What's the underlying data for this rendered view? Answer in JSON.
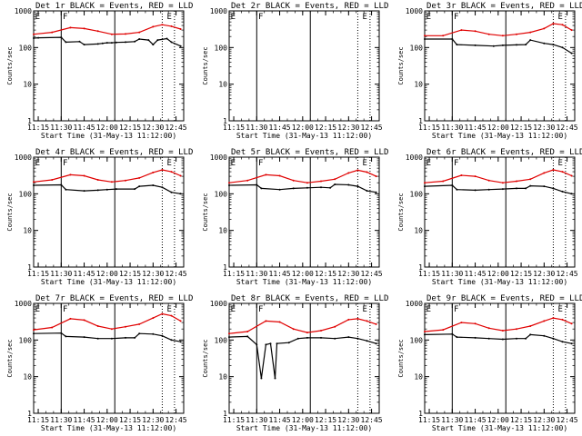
{
  "chart_data": {
    "type": "line",
    "layout": "3x3 grid of panels",
    "y_scale": "log",
    "ylim": [
      1,
      1000
    ],
    "y_ticks": [
      "1",
      "10",
      "100",
      "1000"
    ],
    "xlim": [
      "11:12",
      "12:50"
    ],
    "x_ticks": [
      "11:15",
      "11:30",
      "11:45",
      "12:00",
      "12:15",
      "12:30",
      "12:45"
    ],
    "xlabel": "Start Time (31-May-13 11:12:00)",
    "ylabel": "Counts/sec",
    "grid": false,
    "series_colors": {
      "events": "#000000",
      "lld": "#e00000"
    },
    "panels": [
      {
        "title": "Det 1r BLACK = Events, RED = LLD",
        "markers": [
          {
            "label": "E",
            "x": "11:13"
          },
          {
            "label": "F",
            "x": "11:31"
          },
          {
            "label": "E",
            "x": "12:39"
          }
        ],
        "solid_lines": [
          "11:30",
          "12:05"
        ],
        "dotted_lines": [
          "12:36",
          "12:44"
        ],
        "events": [
          [
            11.2,
            180
          ],
          [
            11.25,
            185
          ],
          [
            11.5,
            190
          ],
          [
            11.55,
            140
          ],
          [
            11.7,
            145
          ],
          [
            11.75,
            120
          ],
          [
            11.9,
            125
          ],
          [
            11.95,
            130
          ],
          [
            12.0,
            135
          ],
          [
            12.05,
            135
          ],
          [
            12.1,
            138
          ],
          [
            12.2,
            140
          ],
          [
            12.3,
            145
          ],
          [
            12.35,
            170
          ],
          [
            12.45,
            160
          ],
          [
            12.5,
            120
          ],
          [
            12.55,
            160
          ],
          [
            12.65,
            175
          ],
          [
            12.7,
            140
          ],
          [
            12.8,
            110
          ]
        ],
        "lld": [
          [
            11.2,
            230
          ],
          [
            11.4,
            260
          ],
          [
            11.6,
            350
          ],
          [
            11.75,
            330
          ],
          [
            11.9,
            280
          ],
          [
            12.05,
            230
          ],
          [
            12.2,
            235
          ],
          [
            12.35,
            260
          ],
          [
            12.5,
            370
          ],
          [
            12.6,
            420
          ],
          [
            12.7,
            380
          ],
          [
            12.8,
            320
          ]
        ]
      },
      {
        "title": "Det 2r BLACK = Events, RED = LLD",
        "markers": [
          {
            "label": "E",
            "x": "11:13"
          },
          {
            "label": "F",
            "x": "11:31"
          },
          {
            "label": "E",
            "x": "12:39"
          }
        ],
        "solid_lines": [
          "11:30",
          "12:05"
        ],
        "dotted_lines": [
          "12:36",
          "12:44"
        ],
        "events": [],
        "lld": []
      },
      {
        "title": "Det 3r BLACK = Events, RED = LLD",
        "markers": [
          {
            "label": "E",
            "x": "11:13"
          },
          {
            "label": "F",
            "x": "11:31"
          },
          {
            "label": "E",
            "x": "12:39"
          }
        ],
        "solid_lines": [
          "11:30",
          "12:05"
        ],
        "dotted_lines": [
          "12:36",
          "12:44"
        ],
        "events": [
          [
            11.2,
            170
          ],
          [
            11.5,
            170
          ],
          [
            11.55,
            120
          ],
          [
            11.75,
            115
          ],
          [
            11.95,
            110
          ],
          [
            12.05,
            115
          ],
          [
            12.2,
            118
          ],
          [
            12.3,
            120
          ],
          [
            12.35,
            160
          ],
          [
            12.5,
            130
          ],
          [
            12.6,
            120
          ],
          [
            12.7,
            100
          ],
          [
            12.8,
            70
          ]
        ],
        "lld": [
          [
            11.2,
            210
          ],
          [
            11.4,
            210
          ],
          [
            11.6,
            300
          ],
          [
            11.75,
            280
          ],
          [
            11.9,
            230
          ],
          [
            12.05,
            210
          ],
          [
            12.2,
            230
          ],
          [
            12.35,
            260
          ],
          [
            12.5,
            330
          ],
          [
            12.6,
            450
          ],
          [
            12.7,
            420
          ],
          [
            12.8,
            300
          ]
        ]
      },
      {
        "title": "Det 4r BLACK = Events, RED = LLD",
        "markers": [
          {
            "label": "E",
            "x": "11:13"
          },
          {
            "label": "F",
            "x": "11:31"
          },
          {
            "label": "E",
            "x": "12:39"
          }
        ],
        "solid_lines": [
          "11:30",
          "12:05"
        ],
        "dotted_lines": [
          "12:36",
          "12:44"
        ],
        "events": [
          [
            11.2,
            170
          ],
          [
            11.5,
            175
          ],
          [
            11.55,
            130
          ],
          [
            11.75,
            120
          ],
          [
            11.9,
            125
          ],
          [
            12.0,
            130
          ],
          [
            12.1,
            135
          ],
          [
            12.3,
            135
          ],
          [
            12.35,
            160
          ],
          [
            12.5,
            170
          ],
          [
            12.6,
            150
          ],
          [
            12.7,
            110
          ],
          [
            12.8,
            100
          ]
        ],
        "lld": [
          [
            11.2,
            210
          ],
          [
            11.4,
            240
          ],
          [
            11.6,
            330
          ],
          [
            11.75,
            310
          ],
          [
            11.9,
            240
          ],
          [
            12.05,
            210
          ],
          [
            12.2,
            230
          ],
          [
            12.35,
            270
          ],
          [
            12.5,
            380
          ],
          [
            12.6,
            450
          ],
          [
            12.7,
            400
          ],
          [
            12.8,
            310
          ]
        ]
      },
      {
        "title": "Det 5r BLACK = Events, RED = LLD",
        "markers": [
          {
            "label": "E",
            "x": "11:13"
          },
          {
            "label": "F",
            "x": "11:31"
          },
          {
            "label": "E",
            "x": "12:39"
          }
        ],
        "solid_lines": [
          "11:30",
          "12:05"
        ],
        "dotted_lines": [
          "12:36",
          "12:44"
        ],
        "events": [
          [
            11.2,
            170
          ],
          [
            11.5,
            175
          ],
          [
            11.55,
            140
          ],
          [
            11.75,
            130
          ],
          [
            11.9,
            140
          ],
          [
            12.05,
            145
          ],
          [
            12.2,
            150
          ],
          [
            12.3,
            145
          ],
          [
            12.35,
            180
          ],
          [
            12.5,
            175
          ],
          [
            12.6,
            160
          ],
          [
            12.7,
            120
          ],
          [
            12.8,
            110
          ]
        ],
        "lld": [
          [
            11.2,
            200
          ],
          [
            11.4,
            230
          ],
          [
            11.6,
            330
          ],
          [
            11.75,
            310
          ],
          [
            11.9,
            230
          ],
          [
            12.05,
            200
          ],
          [
            12.2,
            220
          ],
          [
            12.35,
            250
          ],
          [
            12.5,
            370
          ],
          [
            12.6,
            440
          ],
          [
            12.7,
            390
          ],
          [
            12.8,
            300
          ]
        ]
      },
      {
        "title": "Det 6r BLACK = Events, RED = LLD",
        "markers": [
          {
            "label": "E",
            "x": "11:13"
          },
          {
            "label": "F",
            "x": "11:31"
          },
          {
            "label": "E",
            "x": "12:39"
          }
        ],
        "solid_lines": [
          "11:30",
          "12:05"
        ],
        "dotted_lines": [
          "12:36",
          "12:44"
        ],
        "events": [
          [
            11.2,
            160
          ],
          [
            11.5,
            170
          ],
          [
            11.55,
            130
          ],
          [
            11.75,
            125
          ],
          [
            11.9,
            130
          ],
          [
            12.05,
            135
          ],
          [
            12.2,
            140
          ],
          [
            12.3,
            140
          ],
          [
            12.35,
            165
          ],
          [
            12.5,
            160
          ],
          [
            12.6,
            140
          ],
          [
            12.7,
            115
          ],
          [
            12.8,
            100
          ]
        ],
        "lld": [
          [
            11.2,
            200
          ],
          [
            11.4,
            220
          ],
          [
            11.6,
            320
          ],
          [
            11.75,
            300
          ],
          [
            11.9,
            230
          ],
          [
            12.05,
            200
          ],
          [
            12.2,
            220
          ],
          [
            12.35,
            250
          ],
          [
            12.5,
            370
          ],
          [
            12.6,
            450
          ],
          [
            12.7,
            400
          ],
          [
            12.8,
            310
          ]
        ]
      },
      {
        "title": "Det 7r BLACK = Events, RED = LLD",
        "markers": [
          {
            "label": "E",
            "x": "11:13"
          },
          {
            "label": "F",
            "x": "11:31"
          },
          {
            "label": "E",
            "x": "12:39"
          }
        ],
        "solid_lines": [
          "11:30",
          "12:05"
        ],
        "dotted_lines": [
          "12:36",
          "12:44"
        ],
        "events": [
          [
            11.2,
            150
          ],
          [
            11.5,
            155
          ],
          [
            11.55,
            125
          ],
          [
            11.75,
            120
          ],
          [
            11.9,
            110
          ],
          [
            12.05,
            110
          ],
          [
            12.2,
            115
          ],
          [
            12.3,
            115
          ],
          [
            12.35,
            150
          ],
          [
            12.5,
            145
          ],
          [
            12.6,
            130
          ],
          [
            12.7,
            100
          ],
          [
            12.8,
            90
          ]
        ],
        "lld": [
          [
            11.2,
            190
          ],
          [
            11.4,
            220
          ],
          [
            11.6,
            380
          ],
          [
            11.75,
            350
          ],
          [
            11.9,
            240
          ],
          [
            12.05,
            200
          ],
          [
            12.2,
            230
          ],
          [
            12.35,
            270
          ],
          [
            12.5,
            400
          ],
          [
            12.6,
            520
          ],
          [
            12.7,
            460
          ],
          [
            12.8,
            330
          ]
        ]
      },
      {
        "title": "Det 8r BLACK = Events, RED = LLD",
        "markers": [
          {
            "label": "E",
            "x": "11:13"
          },
          {
            "label": "F",
            "x": "11:31"
          },
          {
            "label": "E",
            "x": "12:39"
          }
        ],
        "solid_lines": [
          "11:30",
          "12:05"
        ],
        "dotted_lines": [
          "12:36",
          "12:44"
        ],
        "events": [
          [
            11.2,
            120
          ],
          [
            11.4,
            125
          ],
          [
            11.5,
            75
          ],
          [
            11.55,
            9
          ],
          [
            11.6,
            75
          ],
          [
            11.65,
            80
          ],
          [
            11.7,
            9
          ],
          [
            11.72,
            80
          ],
          [
            11.85,
            85
          ],
          [
            11.95,
            110
          ],
          [
            12.05,
            115
          ],
          [
            12.2,
            115
          ],
          [
            12.35,
            110
          ],
          [
            12.5,
            120
          ],
          [
            12.6,
            110
          ],
          [
            12.7,
            95
          ],
          [
            12.8,
            80
          ]
        ],
        "lld": [
          [
            11.2,
            150
          ],
          [
            11.4,
            170
          ],
          [
            11.6,
            330
          ],
          [
            11.75,
            310
          ],
          [
            11.9,
            200
          ],
          [
            12.05,
            160
          ],
          [
            12.2,
            180
          ],
          [
            12.35,
            230
          ],
          [
            12.5,
            360
          ],
          [
            12.6,
            380
          ],
          [
            12.7,
            330
          ],
          [
            12.8,
            270
          ]
        ]
      },
      {
        "title": "Det 9r BLACK = Events, RED = LLD",
        "markers": [
          {
            "label": "E",
            "x": "11:13"
          },
          {
            "label": "F",
            "x": "11:31"
          },
          {
            "label": "E",
            "x": "12:39"
          }
        ],
        "solid_lines": [
          "11:30",
          "12:05"
        ],
        "dotted_lines": [
          "12:36",
          "12:44"
        ],
        "events": [
          [
            11.2,
            140
          ],
          [
            11.5,
            145
          ],
          [
            11.55,
            120
          ],
          [
            11.75,
            115
          ],
          [
            11.9,
            110
          ],
          [
            12.05,
            105
          ],
          [
            12.2,
            110
          ],
          [
            12.3,
            110
          ],
          [
            12.35,
            140
          ],
          [
            12.5,
            130
          ],
          [
            12.6,
            110
          ],
          [
            12.7,
            90
          ],
          [
            12.8,
            80
          ]
        ],
        "lld": [
          [
            11.2,
            170
          ],
          [
            11.4,
            190
          ],
          [
            11.6,
            300
          ],
          [
            11.75,
            280
          ],
          [
            11.9,
            210
          ],
          [
            12.05,
            180
          ],
          [
            12.2,
            200
          ],
          [
            12.35,
            240
          ],
          [
            12.5,
            330
          ],
          [
            12.6,
            400
          ],
          [
            12.7,
            360
          ],
          [
            12.8,
            280
          ]
        ]
      }
    ]
  }
}
